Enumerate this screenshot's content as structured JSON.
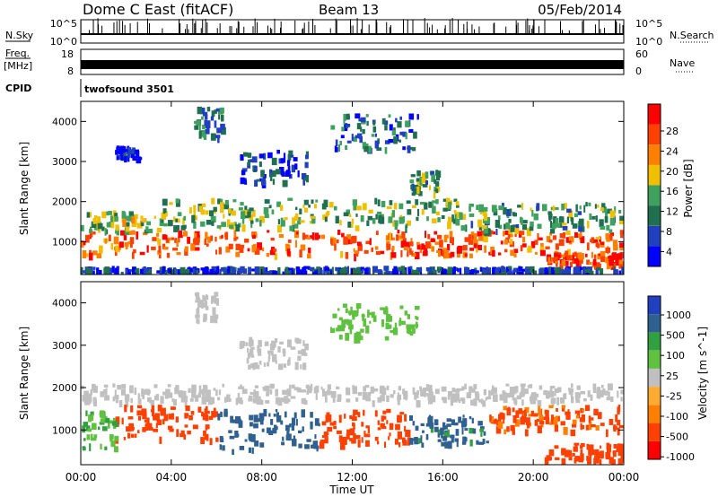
{
  "header": {
    "radar": "Dome C East (fitACF)",
    "beam": "Beam 13",
    "date": "05/Feb/2014"
  },
  "panels": {
    "nsky_label": "N.Sky",
    "nsky_ticks": [
      "10^5",
      "10^0"
    ],
    "nsearch_label": "N.Search",
    "nsearch_ticks": [
      "10^5",
      "10^0"
    ],
    "freq_label": "Freq.",
    "freq_unit": "[MHz]",
    "freq_ticks": [
      "18",
      "8"
    ],
    "nave_label": "Nave",
    "nave_ticks": [
      "60",
      "0"
    ],
    "cpid_label": "CPID",
    "cpid_value": "twofsound 3501"
  },
  "colors": {
    "power": [
      "#0000ff",
      "#2040c0",
      "#207050",
      "#40a060",
      "#f0c000",
      "#ff8000",
      "#ff4000",
      "#ff0000"
    ],
    "velocity": [
      "#ff0000",
      "#ff4000",
      "#ff8000",
      "#ffaa30",
      "#c0c0c0",
      "#60c040",
      "#30a040",
      "#306090",
      "#2040c0"
    ]
  },
  "chart_data": [
    {
      "type": "heatmap",
      "title": "",
      "ylabel": "Slant Range [km]",
      "xlabel": "",
      "ylim": [
        180,
        4500
      ],
      "xlim": [
        "00:00",
        "24:00"
      ],
      "y_ticks": [
        "1000",
        "2000",
        "3000",
        "4000"
      ],
      "colorbar": {
        "label": "Power [dB]",
        "ticks": [
          "28",
          "24",
          "20",
          "16",
          "12",
          "8",
          "4"
        ],
        "range": [
          0,
          32
        ]
      },
      "blobs": [
        {
          "t0": 0.0,
          "t1": 24.0,
          "r0": 700,
          "r1": 1300,
          "v": 25
        },
        {
          "t0": 0.0,
          "t1": 3.5,
          "r0": 1300,
          "r1": 1800,
          "v": 16
        },
        {
          "t0": 3.5,
          "t1": 17.0,
          "r0": 1400,
          "r1": 2100,
          "v": 14
        },
        {
          "t0": 17.0,
          "t1": 24.0,
          "r0": 1300,
          "r1": 2000,
          "v": 12
        },
        {
          "t0": 20.5,
          "t1": 24.0,
          "r0": 450,
          "r1": 750,
          "v": 26
        },
        {
          "t0": 0.0,
          "t1": 24.0,
          "r0": 200,
          "r1": 400,
          "v": 6
        },
        {
          "t0": 5.0,
          "t1": 6.2,
          "r0": 3600,
          "r1": 4400,
          "v": 10
        },
        {
          "t0": 11.0,
          "t1": 15.0,
          "r0": 3300,
          "r1": 4200,
          "v": 9
        },
        {
          "t0": 1.5,
          "t1": 2.5,
          "r0": 3100,
          "r1": 3400,
          "v": 4
        },
        {
          "t0": 7.0,
          "t1": 10.0,
          "r0": 2500,
          "r1": 3300,
          "v": 6
        },
        {
          "t0": 14.5,
          "t1": 15.8,
          "r0": 2200,
          "r1": 2800,
          "v": 13
        }
      ]
    },
    {
      "type": "heatmap",
      "title": "",
      "ylabel": "Slant Range [km]",
      "xlabel": "Time UT",
      "ylim": [
        180,
        4500
      ],
      "xlim": [
        "00:00",
        "24:00"
      ],
      "x_ticks": [
        "00:00",
        "04:00",
        "08:00",
        "12:00",
        "16:00",
        "20:00",
        "00:00"
      ],
      "y_ticks": [
        "1000",
        "2000",
        "3000",
        "4000"
      ],
      "colorbar": {
        "label": "Velocity [m s^-1]",
        "ticks": [
          "1000",
          "500",
          "100",
          "25",
          "-25",
          "-100",
          "-500",
          "-1000"
        ]
      },
      "blobs": [
        {
          "t0": 0.0,
          "t1": 24.0,
          "r0": 1700,
          "r1": 2100,
          "v": 0
        },
        {
          "t0": 1.5,
          "t1": 6.0,
          "r0": 800,
          "r1": 1600,
          "v": -150
        },
        {
          "t0": 6.0,
          "t1": 10.5,
          "r0": 500,
          "r1": 1500,
          "v": 150
        },
        {
          "t0": 10.5,
          "t1": 14.5,
          "r0": 700,
          "r1": 1500,
          "v": -150
        },
        {
          "t0": 14.5,
          "t1": 18.0,
          "r0": 700,
          "r1": 1400,
          "v": 120
        },
        {
          "t0": 18.0,
          "t1": 24.0,
          "r0": 1000,
          "r1": 1600,
          "v": -120
        },
        {
          "t0": 0.0,
          "t1": 1.5,
          "r0": 600,
          "r1": 1500,
          "v": 60
        },
        {
          "t0": 20.5,
          "t1": 24.0,
          "r0": 300,
          "r1": 700,
          "v": -150
        },
        {
          "t0": 5.0,
          "t1": 6.0,
          "r0": 3600,
          "r1": 4300,
          "v": 0
        },
        {
          "t0": 11.0,
          "t1": 15.0,
          "r0": 3200,
          "r1": 4000,
          "v": 40
        },
        {
          "t0": 7.0,
          "t1": 10.0,
          "r0": 2500,
          "r1": 3200,
          "v": 0
        }
      ]
    }
  ],
  "footer": {
    "xlabel": "Time UT"
  }
}
